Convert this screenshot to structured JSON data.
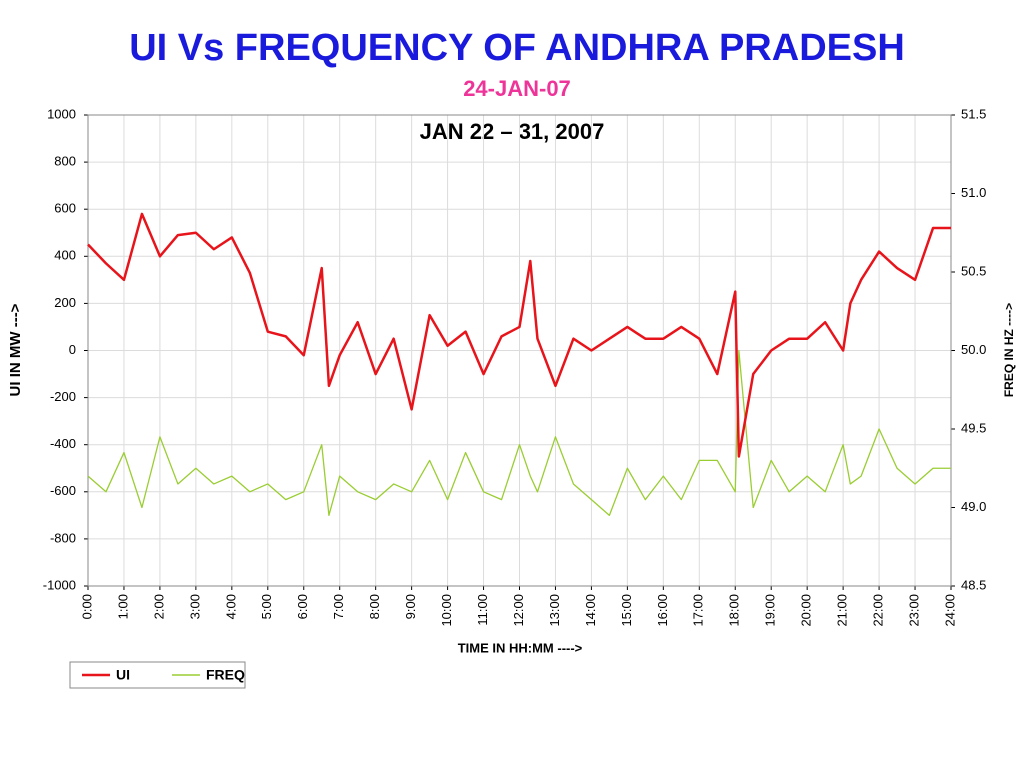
{
  "chart_data": {
    "type": "line",
    "title": "UI Vs FREQUENCY OF ANDHRA PRADESH",
    "subtitle": "24-JAN-07",
    "annotation": "JAN 22 – 31, 2007",
    "x_label": "TIME IN HH:MM  ---->",
    "y_label": "UI IN MW  --->",
    "y2_label": "FREQ IN HZ  ---->",
    "x": [
      0,
      0.5,
      1,
      1.5,
      2,
      2.5,
      3,
      3.5,
      4,
      4.5,
      5,
      5.5,
      6,
      6.5,
      6.7,
      7,
      7.5,
      8,
      8.5,
      9,
      9.5,
      10,
      10.5,
      11,
      11.5,
      12,
      12.3,
      12.5,
      13,
      13.5,
      14,
      14.5,
      15,
      15.5,
      16,
      16.5,
      17,
      17.5,
      18,
      18.1,
      18.5,
      19,
      19.5,
      20,
      20.5,
      21,
      21.2,
      21.5,
      22,
      22.5,
      23,
      23.5,
      24
    ],
    "series": [
      {
        "name": "UI",
        "color": "#e8141b",
        "axis": "y",
        "values": [
          450,
          370,
          300,
          580,
          400,
          490,
          500,
          430,
          480,
          330,
          80,
          60,
          -20,
          350,
          -150,
          -20,
          120,
          -100,
          50,
          -250,
          150,
          20,
          80,
          -100,
          60,
          100,
          380,
          50,
          -150,
          50,
          0,
          50,
          100,
          50,
          50,
          100,
          50,
          -100,
          250,
          -450,
          -100,
          0,
          50,
          50,
          120,
          0,
          200,
          300,
          420,
          350,
          300,
          520,
          520
        ]
      },
      {
        "name": "FREQ",
        "color": "#9acd32",
        "axis": "y2",
        "values": [
          49.2,
          49.1,
          49.35,
          49.0,
          49.45,
          49.15,
          49.25,
          49.15,
          49.2,
          49.1,
          49.15,
          49.05,
          49.1,
          49.4,
          48.95,
          49.2,
          49.1,
          49.05,
          49.15,
          49.1,
          49.3,
          49.05,
          49.35,
          49.1,
          49.05,
          49.4,
          49.2,
          49.1,
          49.45,
          49.15,
          49.05,
          48.95,
          49.25,
          49.05,
          49.2,
          49.05,
          49.3,
          49.3,
          49.1,
          50.0,
          49.0,
          49.3,
          49.1,
          49.2,
          49.1,
          49.4,
          49.15,
          49.2,
          49.5,
          49.25,
          49.15,
          49.25,
          49.25
        ]
      }
    ],
    "xlim": [
      0,
      24
    ],
    "xticks": [
      {
        "value": 0,
        "label": "0:00"
      },
      {
        "value": 1,
        "label": "1:00"
      },
      {
        "value": 2,
        "label": "2:00"
      },
      {
        "value": 3,
        "label": "3:00"
      },
      {
        "value": 4,
        "label": "4:00"
      },
      {
        "value": 5,
        "label": "5:00"
      },
      {
        "value": 6,
        "label": "6:00"
      },
      {
        "value": 7,
        "label": "7:00"
      },
      {
        "value": 8,
        "label": "8:00"
      },
      {
        "value": 9,
        "label": "9:00"
      },
      {
        "value": 10,
        "label": "10:00"
      },
      {
        "value": 11,
        "label": "11:00"
      },
      {
        "value": 12,
        "label": "12:00"
      },
      {
        "value": 13,
        "label": "13:00"
      },
      {
        "value": 14,
        "label": "14:00"
      },
      {
        "value": 15,
        "label": "15:00"
      },
      {
        "value": 16,
        "label": "16:00"
      },
      {
        "value": 17,
        "label": "17:00"
      },
      {
        "value": 18,
        "label": "18:00"
      },
      {
        "value": 19,
        "label": "19:00"
      },
      {
        "value": 20,
        "label": "20:00"
      },
      {
        "value": 21,
        "label": "21:00"
      },
      {
        "value": 22,
        "label": "22:00"
      },
      {
        "value": 23,
        "label": "23:00"
      },
      {
        "value": 24,
        "label": "24:00"
      }
    ],
    "ylim": [
      -1000,
      1000
    ],
    "yticks": [
      -1000,
      -800,
      -600,
      -400,
      -200,
      0,
      200,
      400,
      600,
      800,
      1000
    ],
    "y2lim": [
      48.5,
      51.5
    ],
    "y2ticks": [
      48.5,
      {
        "value": 49,
        "label": "49.0"
      },
      49.5,
      {
        "value": 50,
        "label": "50.0"
      },
      50.5,
      {
        "value": 51,
        "label": "51.0"
      },
      51.5
    ],
    "grid": true,
    "legend": "bottom-left"
  }
}
